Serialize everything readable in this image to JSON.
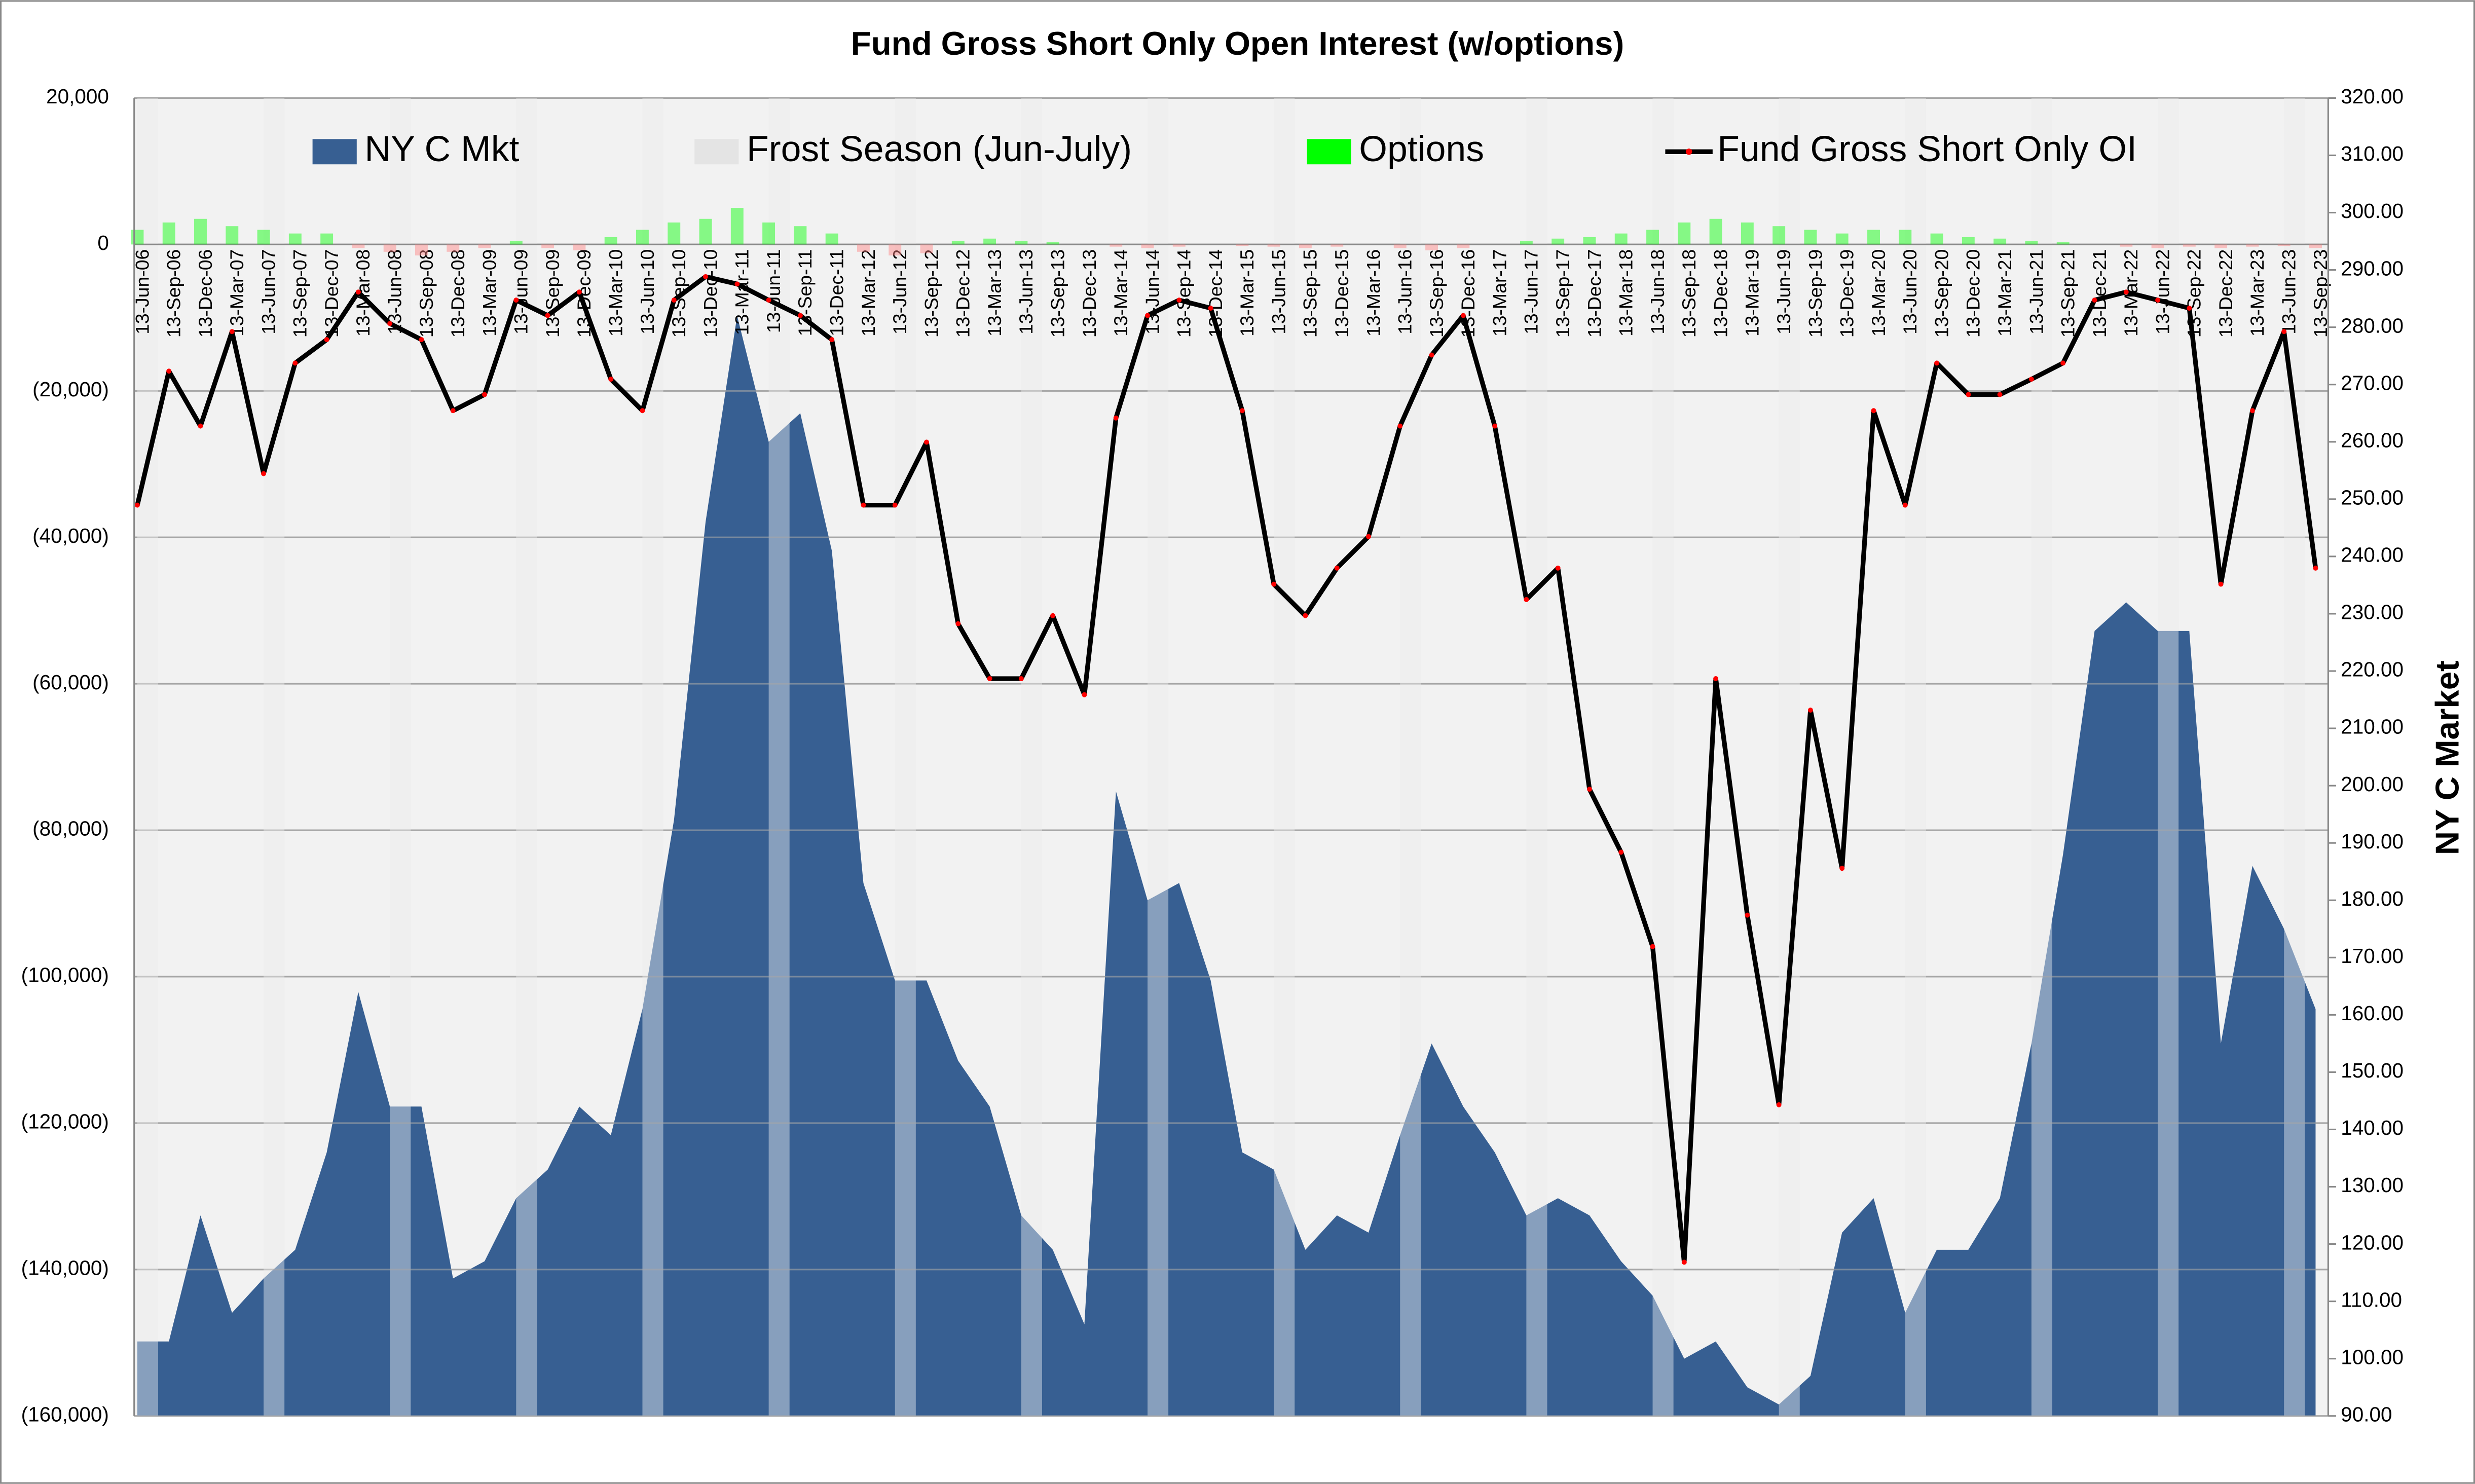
{
  "chart_data": {
    "type": "combo",
    "title": "Fund Gross Short Only Open Interest (w/options)",
    "y2_label": "NY C Market",
    "categories": [
      "13-Jun-06",
      "13-Sep-06",
      "13-Dec-06",
      "13-Mar-07",
      "13-Jun-07",
      "13-Sep-07",
      "13-Dec-07",
      "13-Mar-08",
      "13-Jun-08",
      "13-Sep-08",
      "13-Dec-08",
      "13-Mar-09",
      "13-Jun-09",
      "13-Sep-09",
      "13-Dec-09",
      "13-Mar-10",
      "13-Jun-10",
      "13-Sep-10",
      "13-Dec-10",
      "13-Mar-11",
      "13-Jun-11",
      "13-Sep-11",
      "13-Dec-11",
      "13-Mar-12",
      "13-Jun-12",
      "13-Sep-12",
      "13-Dec-12",
      "13-Mar-13",
      "13-Jun-13",
      "13-Sep-13",
      "13-Dec-13",
      "13-Mar-14",
      "13-Jun-14",
      "13-Sep-14",
      "13-Dec-14",
      "13-Mar-15",
      "13-Jun-15",
      "13-Sep-15",
      "13-Dec-15",
      "13-Mar-16",
      "13-Jun-16",
      "13-Sep-16",
      "13-Dec-16",
      "13-Mar-17",
      "13-Jun-17",
      "13-Sep-17",
      "13-Dec-17",
      "13-Mar-18",
      "13-Jun-18",
      "13-Sep-18",
      "13-Dec-18",
      "13-Mar-19",
      "13-Jun-19",
      "13-Sep-19",
      "13-Dec-19",
      "13-Mar-20",
      "13-Jun-20",
      "13-Sep-20",
      "13-Dec-20",
      "13-Mar-21",
      "13-Jun-21",
      "13-Sep-21",
      "13-Dec-21",
      "13-Mar-22",
      "13-Jun-22",
      "13-Sep-22",
      "13-Dec-22",
      "13-Mar-23",
      "13-Jun-23",
      "13-Sep-23"
    ],
    "series": [
      {
        "name": "NY C Mkt",
        "kind": "area",
        "axis": "y2",
        "color": "#375f92",
        "values": [
          103,
          103,
          125,
          108,
          114,
          119,
          136,
          164,
          144,
          144,
          114,
          117,
          128,
          133,
          144,
          139,
          161,
          194,
          246,
          282,
          260,
          265,
          241,
          183,
          166,
          166,
          152,
          144,
          125,
          119,
          106,
          199,
          180,
          183,
          166,
          136,
          133,
          119,
          125,
          122,
          139,
          155,
          144,
          136,
          125,
          128,
          125,
          117,
          111,
          100,
          103,
          95,
          92,
          97,
          122,
          128,
          108,
          119,
          119,
          128,
          155,
          188,
          227,
          232,
          227,
          227,
          155,
          186,
          175,
          161
        ]
      },
      {
        "name": "Frost Season (Jun-July)",
        "kind": "band",
        "color": "#e4e4e4",
        "values": [
          20000,
          null,
          null,
          null,
          20000,
          null,
          null,
          null,
          20000,
          null,
          null,
          null,
          20000,
          null,
          null,
          null,
          20000,
          null,
          null,
          null,
          20000,
          null,
          null,
          null,
          20000,
          null,
          null,
          null,
          20000,
          null,
          null,
          null,
          20000,
          null,
          null,
          null,
          20000,
          null,
          null,
          null,
          20000,
          null,
          null,
          null,
          20000,
          null,
          null,
          null,
          20000,
          null,
          null,
          null,
          20000,
          null,
          null,
          null,
          20000,
          null,
          null,
          null,
          20000,
          null,
          null,
          null,
          20000,
          null,
          null,
          null,
          20000,
          null
        ]
      },
      {
        "name": "Options",
        "kind": "bar",
        "color": "#00ff00",
        "negative_color": "#ff8080",
        "values": [
          2000,
          3000,
          3500,
          2500,
          2000,
          1500,
          1500,
          -500,
          -1000,
          -1500,
          -1000,
          -500,
          500,
          -500,
          -800,
          1000,
          2000,
          3000,
          3500,
          5000,
          3000,
          2500,
          1500,
          -1000,
          -1500,
          -1200,
          500,
          800,
          500,
          300,
          0,
          -300,
          -500,
          -300,
          0,
          -200,
          -300,
          -500,
          -300,
          0,
          -500,
          -800,
          -500,
          0,
          500,
          800,
          1000,
          1500,
          2000,
          3000,
          3500,
          3000,
          2500,
          2000,
          1500,
          2000,
          2000,
          1500,
          1000,
          800,
          500,
          300,
          0,
          -300,
          -500,
          -300,
          -500,
          -300,
          -200,
          -500
        ]
      },
      {
        "name": "Fund Gross Short Only OI",
        "kind": "line",
        "color": "#000000",
        "marker_color": "#ff0000",
        "values": [
          -35600,
          -17300,
          -24800,
          -11900,
          -31300,
          -16200,
          -13000,
          -6500,
          -10800,
          -13000,
          -22700,
          -20500,
          -7600,
          -9700,
          -6500,
          -18400,
          -22700,
          -7600,
          -4400,
          -5400,
          -7600,
          -9700,
          -13000,
          -35600,
          -35600,
          -27000,
          -51800,
          -59300,
          -59300,
          -50700,
          -61500,
          -23700,
          -9700,
          -7600,
          -8700,
          -22700,
          -46400,
          -50700,
          -44200,
          -39900,
          -24800,
          -15100,
          -9700,
          -24800,
          -48500,
          -44200,
          -74400,
          -83000,
          -95900,
          -139000,
          -59300,
          -91600,
          -117500,
          -63600,
          -85200,
          -22700,
          -35600,
          -16200,
          -20500,
          -20500,
          -18400,
          -16200,
          -7600,
          -6500,
          -7600,
          -8700,
          -46400,
          -22700,
          -11900,
          -44200
        ]
      }
    ],
    "ylim": [
      -160000,
      20000
    ],
    "yticks": [
      {
        "value": -160000,
        "label": "(160,000)"
      },
      {
        "value": -140000,
        "label": "(140,000)"
      },
      {
        "value": -120000,
        "label": "(120,000)"
      },
      {
        "value": -100000,
        "label": "(100,000)"
      },
      {
        "value": -80000,
        "label": "(80,000)"
      },
      {
        "value": -60000,
        "label": "(60,000)"
      },
      {
        "value": -40000,
        "label": "(40,000)"
      },
      {
        "value": -20000,
        "label": "(20,000)"
      },
      0,
      {
        "value": 20000,
        "label": "20,000"
      }
    ],
    "negative_tick_color": "#c00000",
    "y2lim": [
      90,
      320
    ],
    "y2ticks": [
      {
        "value": 90,
        "label": "90.00"
      },
      {
        "value": 100,
        "label": "100.00"
      },
      {
        "value": 110,
        "label": "110.00"
      },
      {
        "value": 120,
        "label": "120.00"
      },
      {
        "value": 130,
        "label": "130.00"
      },
      {
        "value": 140,
        "label": "140.00"
      },
      {
        "value": 150,
        "label": "150.00"
      },
      {
        "value": 160,
        "label": "160.00"
      },
      {
        "value": 170,
        "label": "170.00"
      },
      {
        "value": 180,
        "label": "180.00"
      },
      {
        "value": 190,
        "label": "190.00"
      },
      {
        "value": 200,
        "label": "200.00"
      },
      {
        "value": 210,
        "label": "210.00"
      },
      {
        "value": 220,
        "label": "220.00"
      },
      {
        "value": 230,
        "label": "230.00"
      },
      {
        "value": 240,
        "label": "240.00"
      },
      {
        "value": 250,
        "label": "250.00"
      },
      {
        "value": 260,
        "label": "260.00"
      },
      {
        "value": 270,
        "label": "270.00"
      },
      {
        "value": 280,
        "label": "280.00"
      },
      {
        "value": 290,
        "label": "290.00"
      },
      {
        "value": 300,
        "label": "300.00"
      },
      {
        "value": 310,
        "label": "310.00"
      },
      {
        "value": 320,
        "label": "320.00"
      }
    ],
    "grid": true,
    "legend": "top"
  }
}
